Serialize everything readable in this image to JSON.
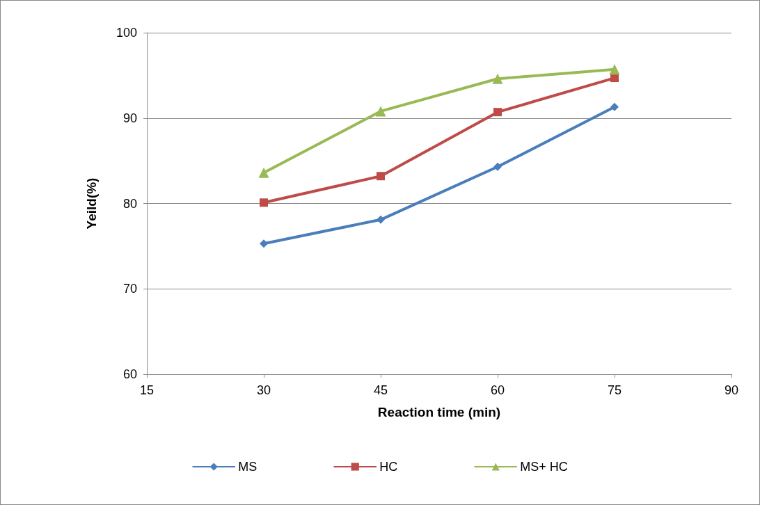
{
  "chart_data": {
    "type": "line",
    "xlabel": "Reaction time (min)",
    "ylabel": "Yeild(%)",
    "x": [
      30,
      45,
      60,
      75
    ],
    "series": [
      {
        "name": "MS",
        "color": "#4a7ebb",
        "marker": "diamond",
        "values": [
          75.3,
          78.1,
          84.3,
          91.3
        ]
      },
      {
        "name": "HC",
        "color": "#be4b48",
        "marker": "square",
        "values": [
          80.1,
          83.2,
          90.7,
          94.7
        ]
      },
      {
        "name": "MS+ HC",
        "color": "#98b954",
        "marker": "triangle",
        "values": [
          83.6,
          90.8,
          94.6,
          95.7
        ]
      }
    ],
    "xlim": [
      15,
      90
    ],
    "xticks": [
      15,
      30,
      45,
      60,
      75,
      90
    ],
    "ylim": [
      60,
      100
    ],
    "yticks": [
      60,
      70,
      80,
      90,
      100
    ],
    "grid": "y",
    "legend": "bottom",
    "line_style": "solid"
  }
}
